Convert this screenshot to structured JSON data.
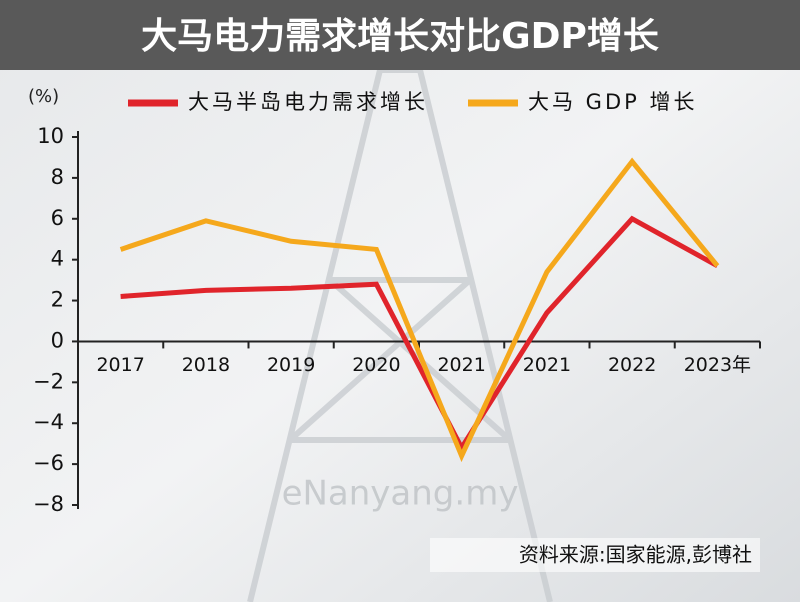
{
  "chart_data": {
    "type": "line",
    "title": "大马电力需求增长对比GDP增长",
    "y_label": "(%)",
    "categories": [
      "2017",
      "2018",
      "2019",
      "2020",
      "2021",
      "2021",
      "2022",
      "2023年"
    ],
    "series": [
      {
        "name": "大马半岛电力需求增长",
        "color": "#e0242b",
        "values": [
          2.2,
          2.5,
          2.6,
          2.8,
          -5.2,
          1.4,
          6.0,
          3.7
        ]
      },
      {
        "name": "大马 GDP 增长",
        "color": "#f5a81c",
        "values": [
          4.5,
          5.9,
          4.9,
          4.5,
          -5.6,
          3.4,
          8.8,
          3.7
        ]
      }
    ],
    "ylim": [
      -8,
      10
    ],
    "yticks": [
      {
        "value": -8,
        "label": "−8"
      },
      {
        "value": -6,
        "label": "−6"
      },
      {
        "value": -4,
        "label": "−4"
      },
      {
        "value": -2,
        "label": "−2"
      },
      0,
      2,
      4,
      6,
      8,
      10
    ],
    "source": "资料来源:国家能源,彭博社",
    "watermark": "eNanyang.my"
  }
}
